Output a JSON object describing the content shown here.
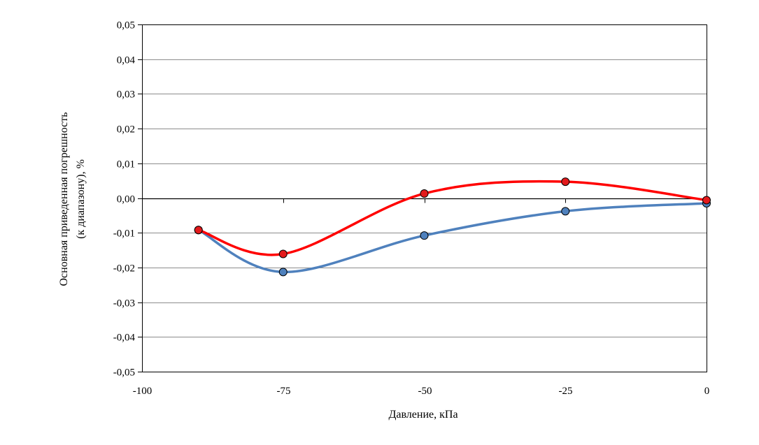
{
  "chart_data": {
    "type": "line",
    "title": "",
    "xlabel": "Давление, кПа",
    "ylabel_line1": "Основная приведенная погрешность",
    "ylabel_line2": "(к диапазону), %",
    "xlim": [
      -100,
      0
    ],
    "ylim": [
      -0.05,
      0.05
    ],
    "x_ticks": [
      -100,
      -75,
      -50,
      -25,
      0
    ],
    "x_tick_labels": [
      "-100",
      "-75",
      "-50",
      "-25",
      "0"
    ],
    "y_ticks": [
      0.05,
      0.04,
      0.03,
      0.02,
      0.01,
      0.0,
      -0.01,
      -0.02,
      -0.03,
      -0.04,
      -0.05
    ],
    "y_tick_labels": [
      "0,05",
      "0,04",
      "0,03",
      "0,02",
      "0,01",
      "0,00",
      "-0,01",
      "-0,02",
      "-0,03",
      "-0,04",
      "-0,05"
    ],
    "grid": true,
    "smooth": true,
    "series": [
      {
        "color": "#4f81bd",
        "marker_color": "#4f81bd",
        "x": [
          -90,
          -75,
          -50,
          -25,
          0
        ],
        "values": [
          -0.0092,
          -0.0213,
          -0.0108,
          -0.0038,
          -0.0015
        ]
      },
      {
        "color": "#ff0000",
        "marker_color": "#e31a1c",
        "x": [
          -90,
          -75,
          -50,
          -25,
          0
        ],
        "values": [
          -0.0092,
          -0.0161,
          0.0013,
          0.0047,
          -0.0006
        ]
      }
    ]
  }
}
